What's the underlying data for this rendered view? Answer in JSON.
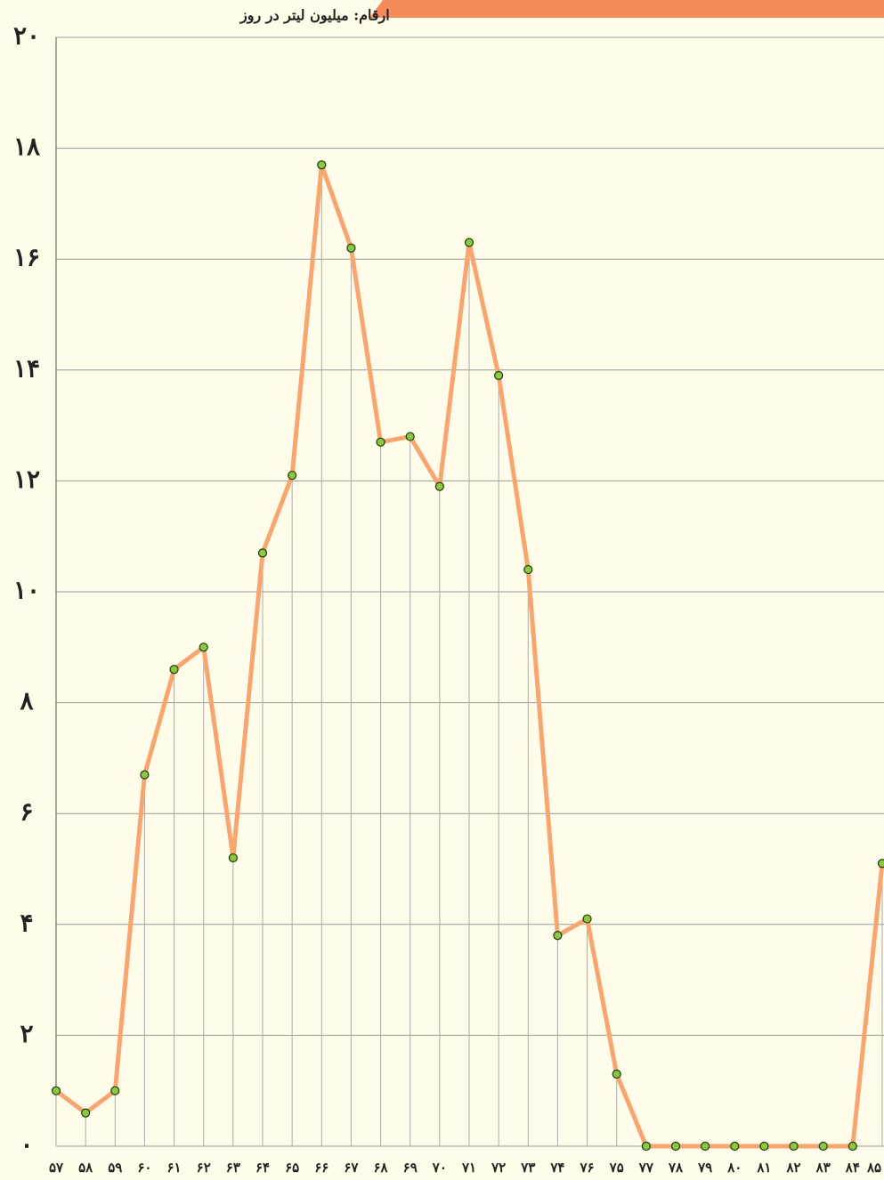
{
  "chart_data": {
    "type": "line",
    "y_label": "ارقام: میلیون لیتر در روز",
    "categories": [
      "۵۷",
      "۵۸",
      "۵۹",
      "۶۰",
      "۶۱",
      "۶۲",
      "۶۳",
      "۶۴",
      "۶۵",
      "۶۶",
      "۶۷",
      "۶۸",
      "۶۹",
      "۷۰",
      "۷۱",
      "۷۲",
      "۷۳",
      "۷۴",
      "۷۶",
      "۷۵",
      "۷۷",
      "۷۸",
      "۷۹",
      "۸۰",
      "۸۱",
      "۸۲",
      "۸۳",
      "۸۴",
      "۸۵"
    ],
    "series": [
      {
        "color": "#f7a670",
        "marker_color": "#8dc63f",
        "values": [
          1.0,
          0.6,
          1.0,
          6.7,
          8.6,
          9.0,
          5.2,
          10.7,
          12.1,
          17.7,
          16.2,
          12.7,
          12.8,
          11.9,
          16.3,
          13.9,
          10.4,
          3.8,
          4.1,
          1.3,
          0,
          0,
          0,
          0,
          0,
          0,
          0,
          0,
          5.1
        ]
      }
    ],
    "ylim": [
      0,
      20
    ],
    "yticks": [
      {
        "value": 0,
        "label": "۰"
      },
      {
        "value": 2,
        "label": "۲"
      },
      {
        "value": 4,
        "label": "۴"
      },
      {
        "value": 6,
        "label": "۶"
      },
      {
        "value": 8,
        "label": "۸"
      },
      {
        "value": 10,
        "label": "۱۰"
      },
      {
        "value": 12,
        "label": "۱۲"
      },
      {
        "value": 14,
        "label": "۱۴"
      },
      {
        "value": 16,
        "label": "۱۶"
      },
      {
        "value": 18,
        "label": "۱۸"
      },
      {
        "value": 20,
        "label": "۲۰"
      }
    ],
    "grid": true
  }
}
